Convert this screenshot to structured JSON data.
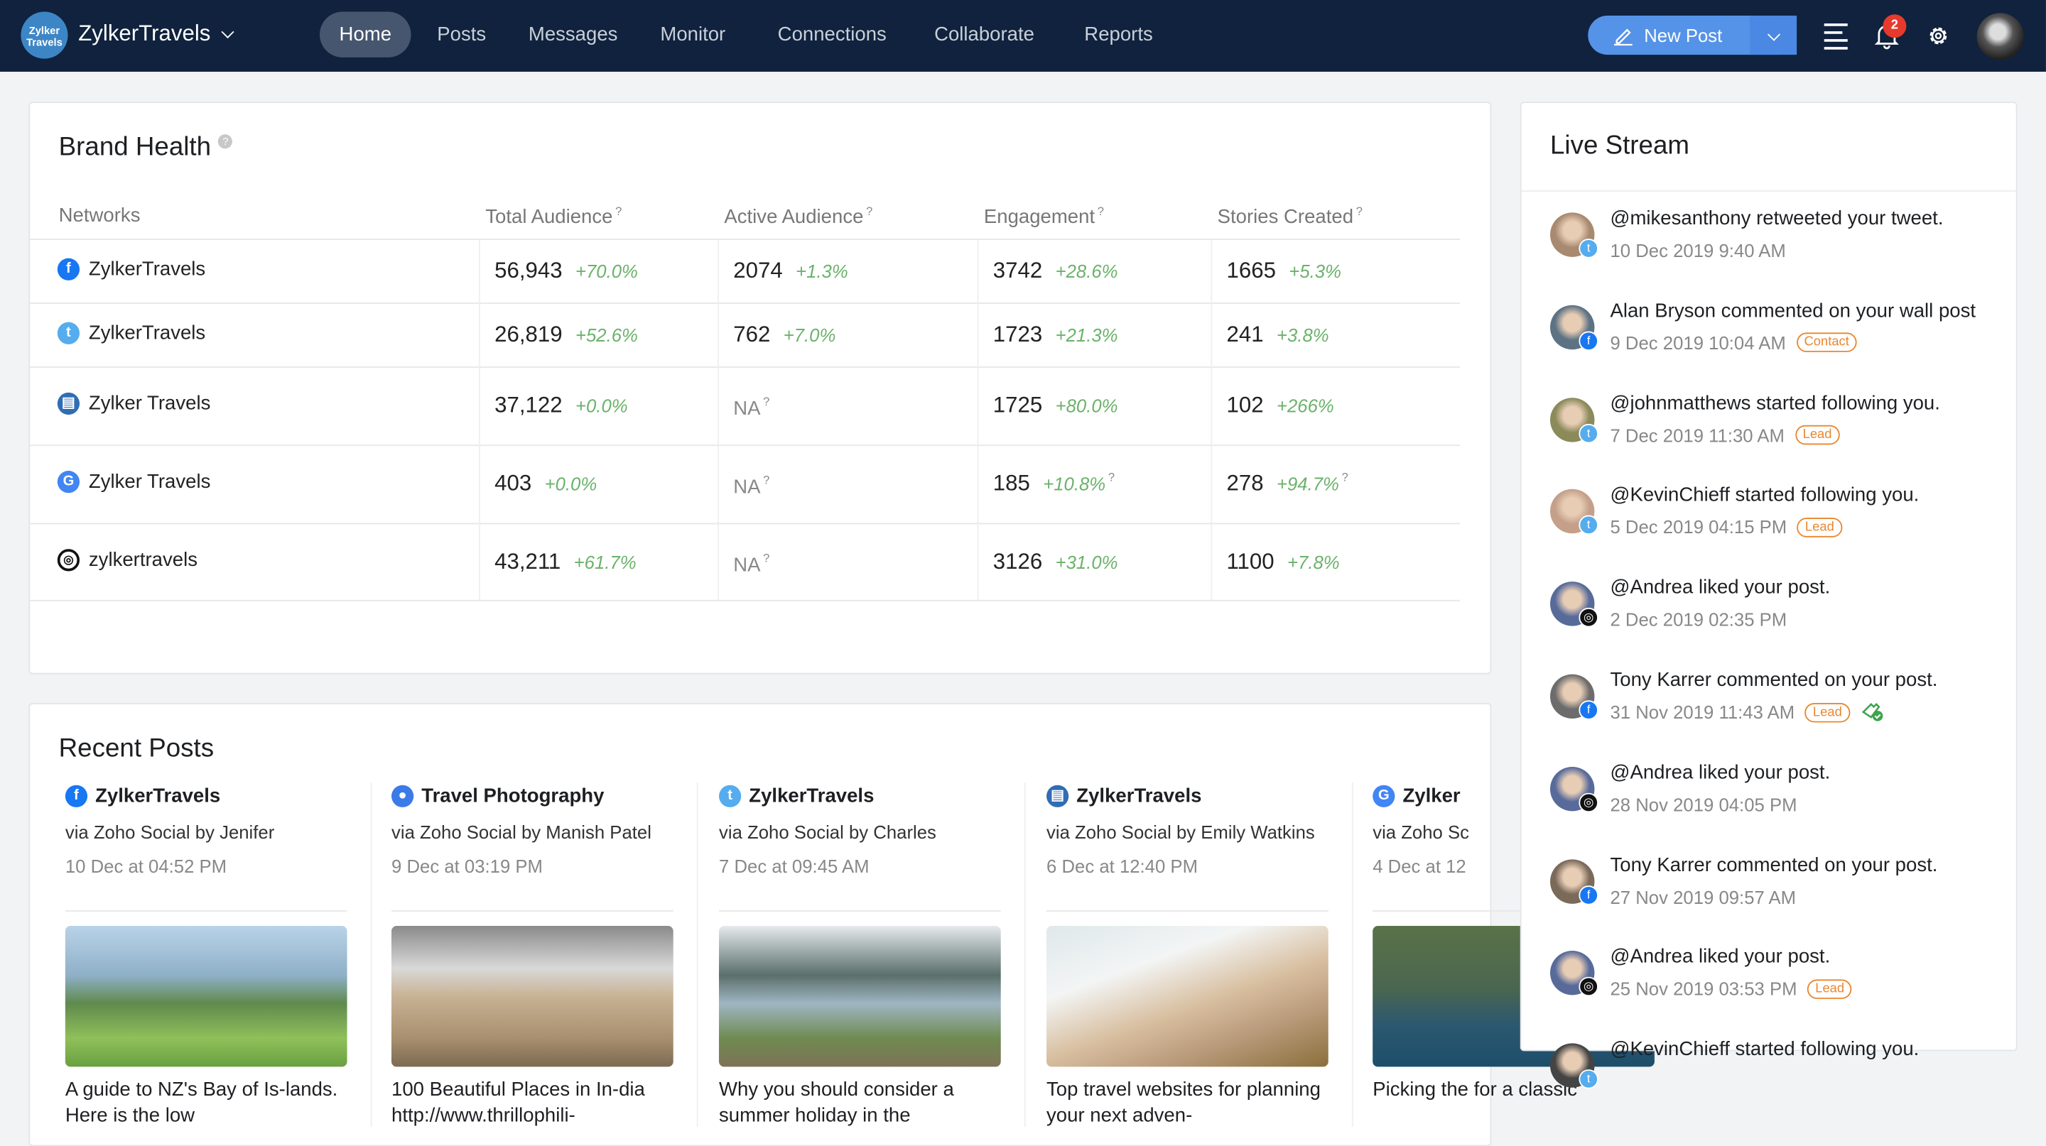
{
  "header": {
    "brand": "ZylkerTravels",
    "logo_text": "Zylker Travels",
    "nav": [
      "Home",
      "Posts",
      "Messages",
      "Monitor",
      "Connections",
      "Collaborate",
      "Reports"
    ],
    "active_nav": "Home",
    "new_post": "New Post",
    "notification_count": "2"
  },
  "brand_health": {
    "title": "Brand Health",
    "help": "?",
    "columns": [
      "Networks",
      "Total Audience",
      "Active Audience",
      "Engagement",
      "Stories Created"
    ],
    "rows": [
      {
        "network": "facebook",
        "name": "ZylkerTravels",
        "total": "56,943",
        "total_pct": "+70.0%",
        "active": "2074",
        "active_pct": "+1.3%",
        "eng": "3742",
        "eng_pct": "+28.6%",
        "stories": "1665",
        "stories_pct": "+5.3%"
      },
      {
        "network": "twitter",
        "name": "ZylkerTravels",
        "total": "26,819",
        "total_pct": "+52.6%",
        "active": "762",
        "active_pct": "+7.0%",
        "eng": "1723",
        "eng_pct": "+21.3%",
        "stories": "241",
        "stories_pct": "+3.8%"
      },
      {
        "network": "google-my-business",
        "name": "Zylker Travels",
        "total": "37,122",
        "total_pct": "+0.0%",
        "active": "NA",
        "active_pct": "",
        "eng": "1725",
        "eng_pct": "+80.0%",
        "stories": "102",
        "stories_pct": "+266%"
      },
      {
        "network": "google",
        "name": "Zylker Travels",
        "total": "403",
        "total_pct": "+0.0%",
        "active": "NA",
        "active_pct": "",
        "eng": "185",
        "eng_pct": "+10.8%",
        "stories": "278",
        "stories_pct": "+94.7%"
      },
      {
        "network": "instagram",
        "name": "zylkertravels",
        "total": "43,211",
        "total_pct": "+61.7%",
        "active": "NA",
        "active_pct": "",
        "eng": "3126",
        "eng_pct": "+31.0%",
        "stories": "1100",
        "stories_pct": "+7.8%"
      }
    ]
  },
  "recent_posts": {
    "title": "Recent Posts",
    "posts": [
      {
        "network": "facebook",
        "account": "ZylkerTravels",
        "via": "via Zoho Social by Jenifer",
        "date": "10 Dec at 04:52 PM",
        "text": "A guide to NZ's Bay of Is-lands. Here is the low"
      },
      {
        "network": "facebook-group",
        "account": "Travel Photography",
        "via": "via Zoho Social by Manish Patel",
        "date": "9 Dec at 03:19 PM",
        "text": "100 Beautiful Places in In-dia http://www.thrillophili-"
      },
      {
        "network": "twitter",
        "account": "ZylkerTravels",
        "via": "via Zoho Social by Charles",
        "date": "7 Dec at 09:45 AM",
        "text": "Why you should consider a summer holiday in the"
      },
      {
        "network": "google-my-business",
        "account": "ZylkerTravels",
        "via": "via Zoho Social by Emily Watkins",
        "date": "6 Dec at 12:40 PM",
        "text": "Top travel websites for planning your next adven-"
      },
      {
        "network": "google",
        "account": "Zylker",
        "via": "via Zoho Sc",
        "date": "4 Dec at 12",
        "text": "Picking the for a classic"
      }
    ]
  },
  "live_stream": {
    "title": "Live Stream",
    "items": [
      {
        "network": "twitter",
        "message": "@mikesanthony retweeted your tweet.",
        "time": "10 Dec 2019 9:40 AM",
        "tag": ""
      },
      {
        "network": "facebook",
        "message": "Alan Bryson commented on your wall post",
        "time": "9 Dec 2019 10:04 AM",
        "tag": "Contact"
      },
      {
        "network": "twitter",
        "message": "@johnmatthews started following you.",
        "time": "7 Dec 2019 11:30 AM",
        "tag": "Lead"
      },
      {
        "network": "twitter",
        "message": "@KevinChieff started following you.",
        "time": "5 Dec 2019 04:15 PM",
        "tag": "Lead"
      },
      {
        "network": "instagram",
        "message": "@Andrea liked your post.",
        "time": "2 Dec 2019 02:35 PM",
        "tag": ""
      },
      {
        "network": "facebook",
        "message": "Tony Karrer commented on your post.",
        "time": "31 Nov 2019 11:43 AM",
        "tag": "Lead",
        "ticket": true
      },
      {
        "network": "instagram",
        "message": "@Andrea liked your post.",
        "time": "28 Nov 2019 04:05 PM",
        "tag": ""
      },
      {
        "network": "facebook",
        "message": "Tony Karrer commented on your post.",
        "time": "27 Nov 2019 09:57 AM",
        "tag": ""
      },
      {
        "network": "instagram",
        "message": "@Andrea liked your post.",
        "time": "25 Nov 2019 03:53 PM",
        "tag": "Lead"
      },
      {
        "network": "twitter",
        "message": "@KevinChieff started following you.",
        "time": "",
        "tag": ""
      }
    ]
  },
  "colors": {
    "header_bg": "#10223d",
    "accent": "#5593e8",
    "positive": "#6ab26a",
    "tag": "#e9872f",
    "badge": "#e53a2d"
  }
}
